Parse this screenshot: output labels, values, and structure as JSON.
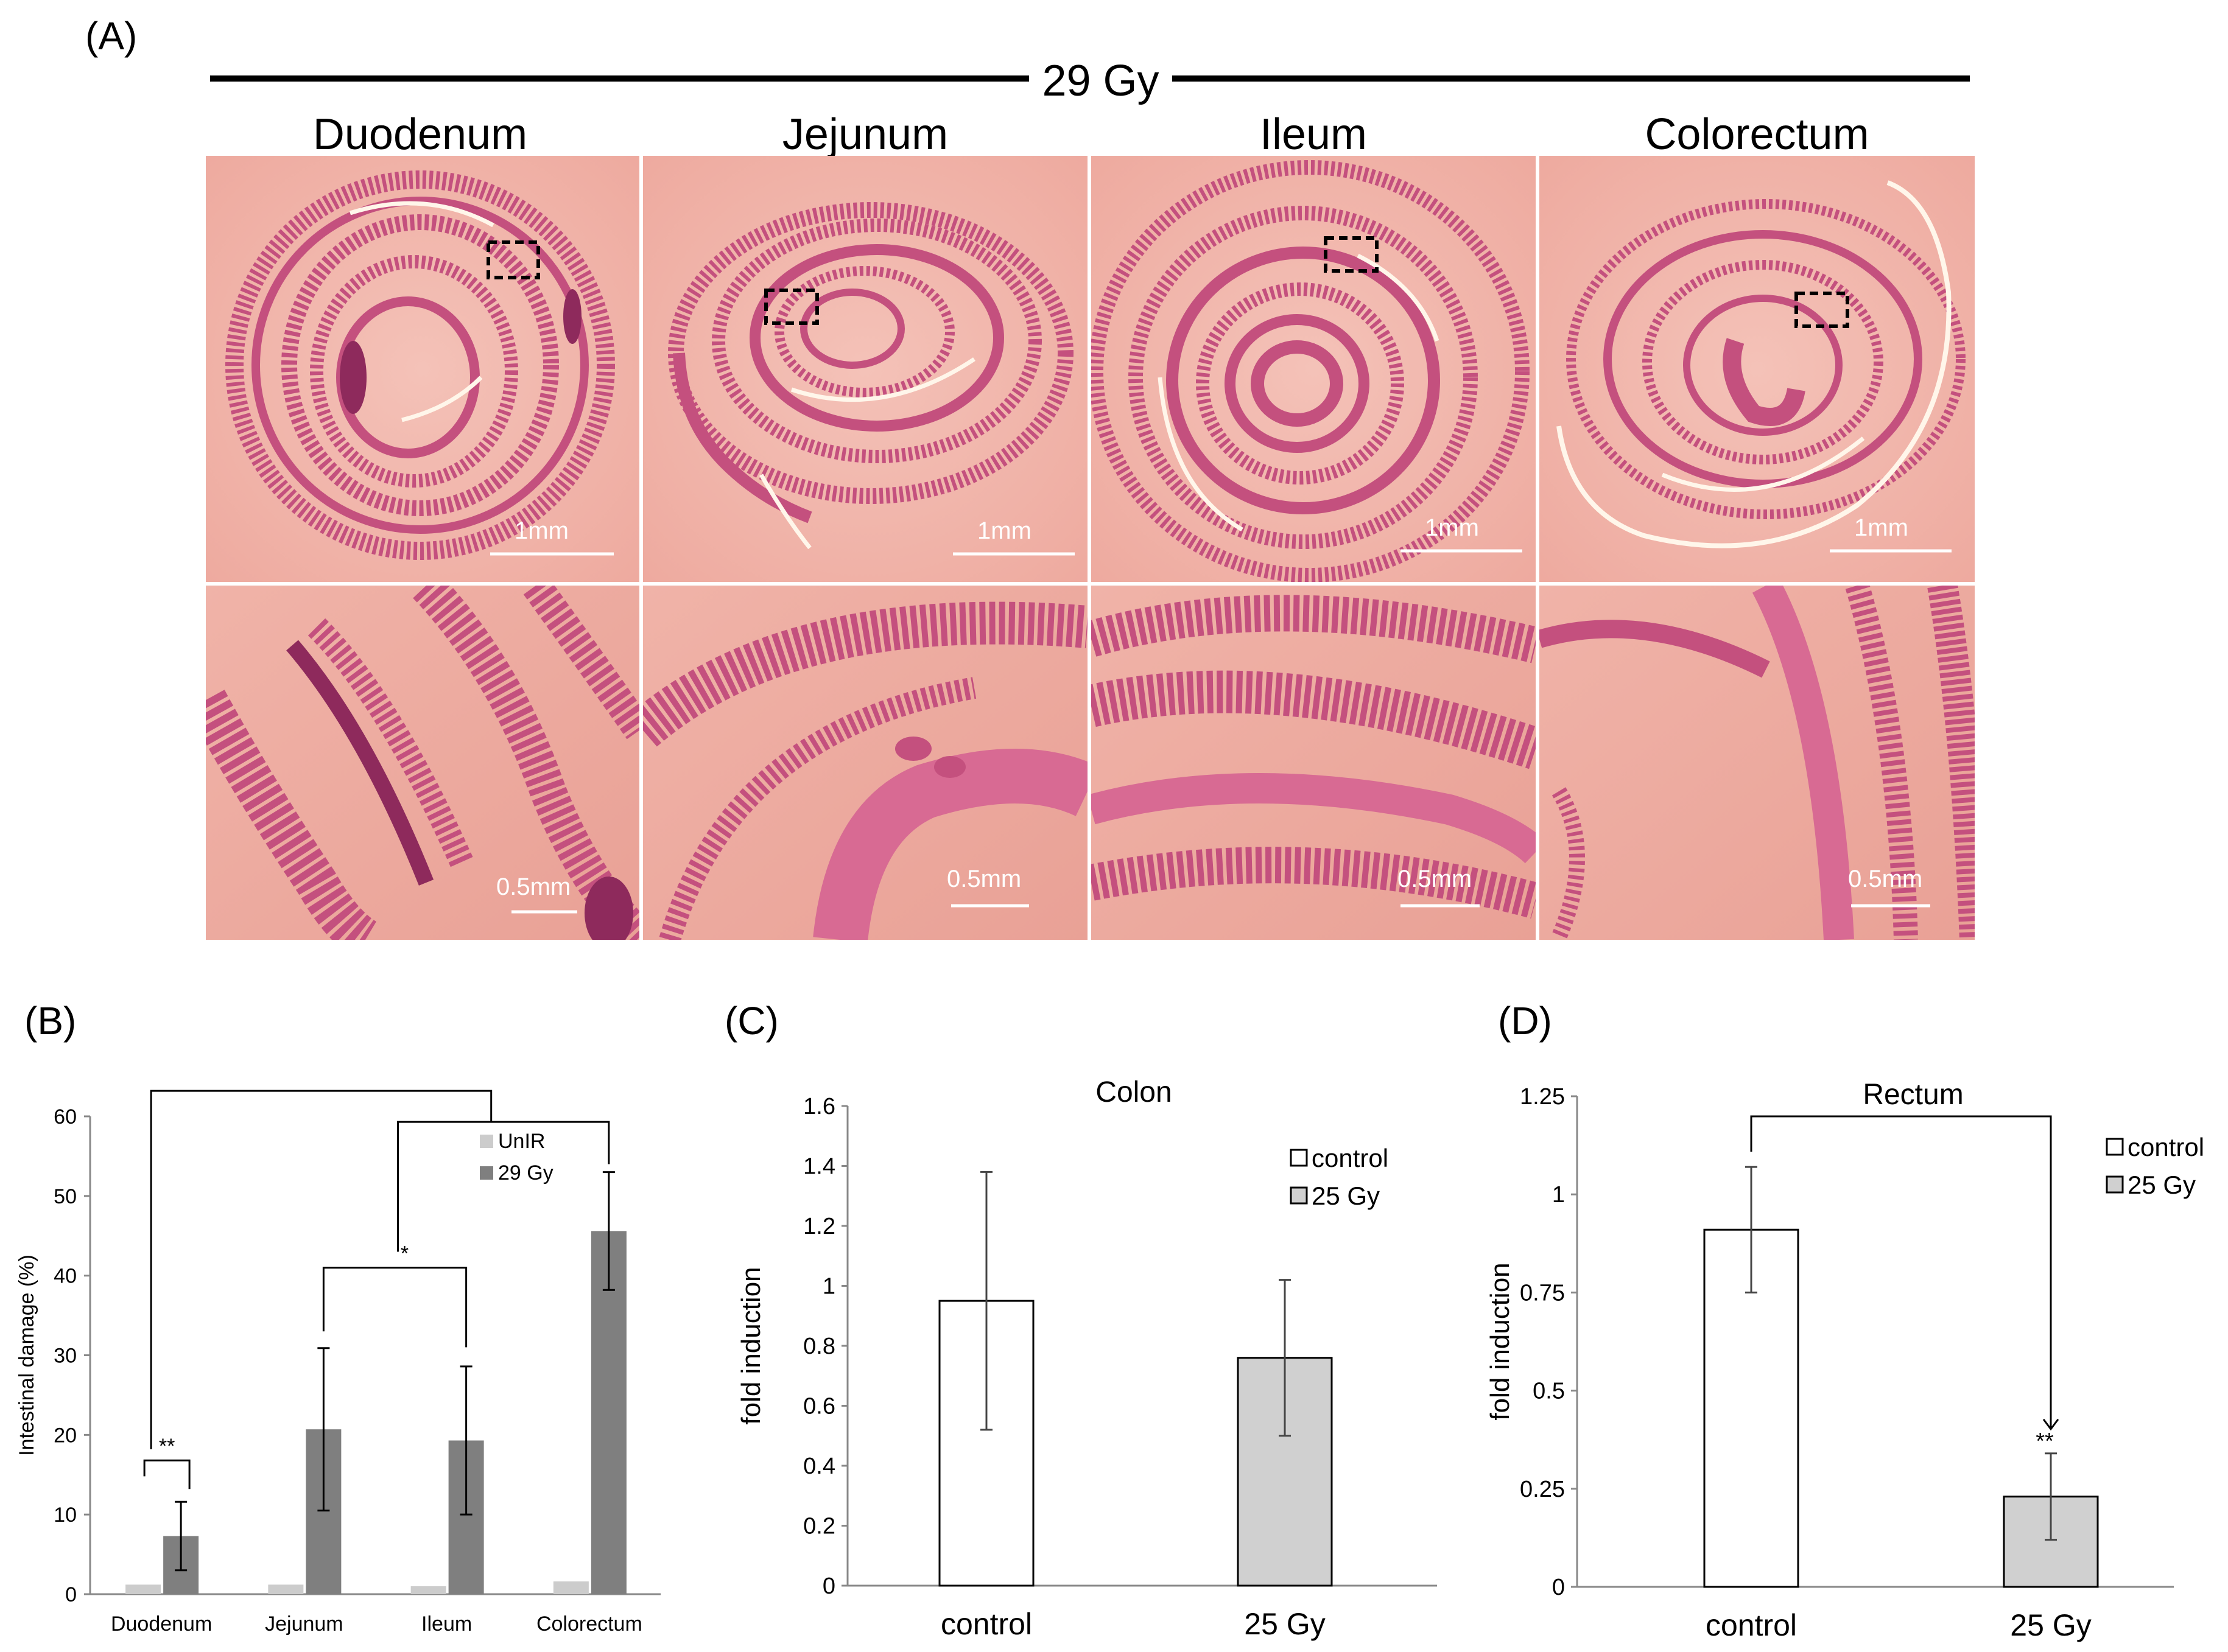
{
  "panel_a": {
    "label": "(A)",
    "dose_label": "29 Gy",
    "tissues": [
      "Duodenum",
      "Jejunum",
      "Ileum",
      "Colorectum"
    ],
    "scale_top": "1mm",
    "scale_bottom": "0.5mm",
    "colors": {
      "tissue_bg": "#f2b7ae",
      "tissue_stain": "#c4507e",
      "tissue_dark": "#8e2a5c",
      "highlight_line": "#fff6ea"
    }
  },
  "panel_b": {
    "label": "(B)"
  },
  "panel_c": {
    "label": "(C)"
  },
  "panel_d": {
    "label": "(D)"
  },
  "chart_data": [
    {
      "panel": "B",
      "type": "bar",
      "categories": [
        "Duodenum",
        "Jejunum",
        "Ileum",
        "Colorectum"
      ],
      "series": [
        {
          "name": "UnIR",
          "values": [
            1.2,
            1.2,
            1.0,
            1.6
          ],
          "color": "#cccccc"
        },
        {
          "name": "29 Gy",
          "values": [
            7.3,
            20.7,
            19.3,
            45.6
          ],
          "errors": [
            4.3,
            10.2,
            9.3,
            7.4
          ],
          "color": "#7f7f7f"
        }
      ],
      "ylabel": "Intestinal damage (%)",
      "ylim": [
        0,
        60
      ],
      "yticks": [
        0,
        10,
        20,
        30,
        40,
        50,
        60
      ],
      "significance": [
        "**",
        "*"
      ],
      "legend_position": "top-right"
    },
    {
      "panel": "C",
      "type": "bar",
      "title": "Colon",
      "categories": [
        "control",
        "25 Gy"
      ],
      "series": [
        {
          "name": "control",
          "values": [
            0.95,
            null
          ],
          "errors": [
            0.43,
            null
          ],
          "color": "#ffffff"
        },
        {
          "name": "25 Gy",
          "values": [
            null,
            0.76
          ],
          "errors": [
            null,
            0.26
          ],
          "color": "#d0d0d0"
        }
      ],
      "ylabel": "fold induction",
      "ylim": [
        0,
        1.6
      ],
      "yticks": [
        "0",
        "0.2",
        "0.4",
        "0.6",
        "0.8",
        "1",
        "1.2",
        "1.4",
        "1.6"
      ],
      "legend_position": "top-right"
    },
    {
      "panel": "D",
      "type": "bar",
      "title": "Rectum",
      "categories": [
        "control",
        "25 Gy"
      ],
      "series": [
        {
          "name": "control",
          "values": [
            0.91,
            null
          ],
          "errors": [
            0.16,
            null
          ],
          "color": "#ffffff"
        },
        {
          "name": "25 Gy",
          "values": [
            null,
            0.23
          ],
          "errors": [
            null,
            0.11
          ],
          "color": "#d0d0d0"
        }
      ],
      "ylabel": "fold induction",
      "ylim": [
        0,
        1.25
      ],
      "yticks": [
        "0",
        "0.25",
        "0.5",
        "0.75",
        "1",
        "1.25"
      ],
      "significance": [
        "**"
      ],
      "legend_position": "top-right"
    }
  ]
}
